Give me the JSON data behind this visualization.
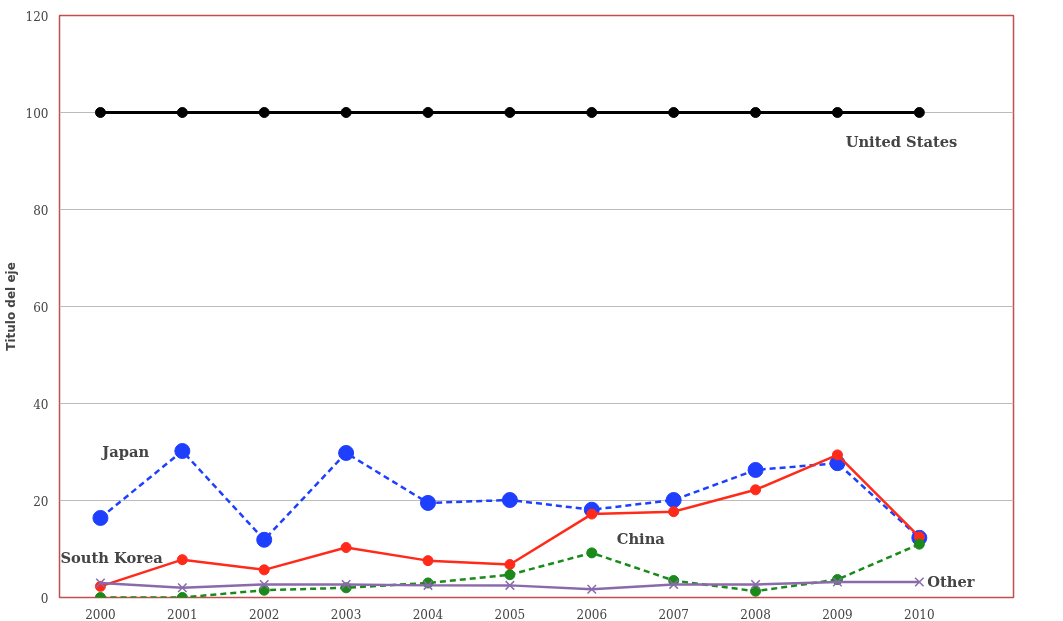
{
  "chart_data": {
    "type": "line",
    "ylabel": "Titulo del eje",
    "categories": [
      "2000",
      "2001",
      "2002",
      "2003",
      "2004",
      "2005",
      "2006",
      "2007",
      "2008",
      "2009",
      "2010"
    ],
    "series": [
      {
        "name": "United States",
        "color": "#000000",
        "marker": "circle",
        "line_style": "solid",
        "values": [
          100,
          100,
          100,
          100,
          100,
          100,
          100,
          100,
          100,
          100,
          100
        ]
      },
      {
        "name": "Japan",
        "color": "#1f3fff",
        "marker": "circle",
        "line_style": "dashed",
        "values": [
          16.4,
          30.2,
          11.9,
          29.8,
          19.5,
          20.1,
          18.1,
          20.1,
          26.3,
          27.7,
          12.3
        ]
      },
      {
        "name": "South Korea",
        "color": "#ff2a1a",
        "marker": "circle",
        "line_style": "solid",
        "values": [
          2.3,
          7.8,
          5.7,
          10.3,
          7.6,
          6.8,
          17.2,
          17.7,
          22.2,
          29.4,
          12.5
        ]
      },
      {
        "name": "China",
        "color": "#1a8a1a",
        "marker": "circle",
        "line_style": "dashed",
        "values": [
          0,
          0,
          1.5,
          2,
          3,
          4.7,
          9.2,
          3.5,
          1.3,
          3.7,
          11
        ]
      },
      {
        "name": "Other",
        "color": "#8a6aaa",
        "marker": "cross",
        "line_style": "solid",
        "values": [
          3,
          2,
          2.7,
          2.7,
          2.5,
          2.5,
          1.7,
          2.7,
          2.7,
          3.2,
          3.2
        ]
      }
    ],
    "ylim": [
      0,
      120
    ],
    "yticks": [
      0,
      20,
      40,
      60,
      80,
      100,
      120
    ],
    "grid": "y",
    "legend": false
  }
}
